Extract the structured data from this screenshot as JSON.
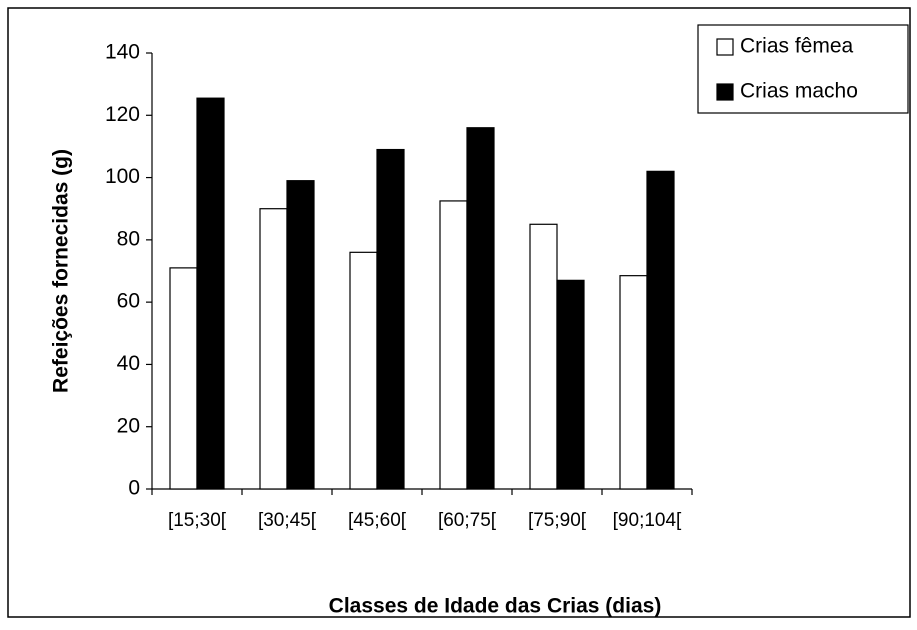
{
  "chart_data": {
    "type": "bar",
    "x_label": "Classes de Idade das Crias (dias)",
    "y_label": "Refeições fornecidas (g)",
    "categories": [
      "[15;30[",
      "[30;45[",
      "[45;60[",
      "[60;75[",
      "[75;90[",
      "[90;104["
    ],
    "series": [
      {
        "name": "Crias fêmea",
        "color": "#ffffff",
        "values": [
          71,
          90,
          76,
          92.5,
          85,
          68.5
        ]
      },
      {
        "name": "Crias macho",
        "color": "#000000",
        "values": [
          125.5,
          99,
          109,
          116,
          67,
          102
        ]
      }
    ],
    "ylim": [
      0,
      140
    ],
    "yticks": [
      0,
      20,
      40,
      60,
      80,
      100,
      120,
      140
    ],
    "legend": "top-right"
  }
}
